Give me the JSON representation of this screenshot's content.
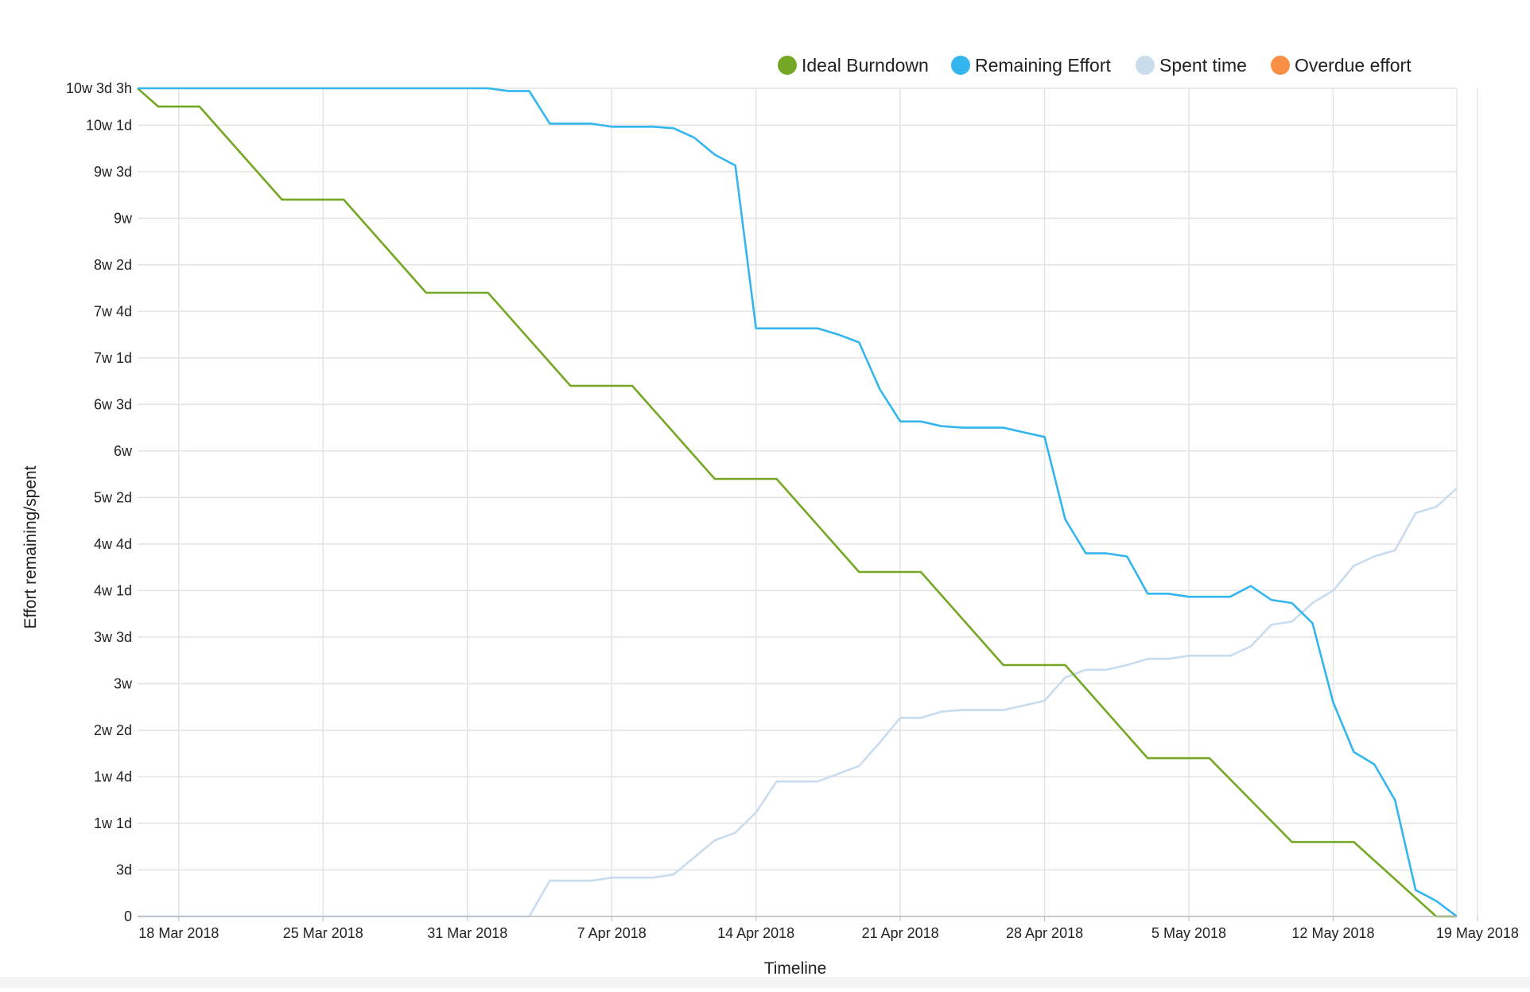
{
  "chart_data": {
    "type": "line",
    "xlabel": "Timeline",
    "ylabel": "Effort remaining/spent",
    "x_tick_labels": [
      "18 Mar 2018",
      "25 Mar 2018",
      "31 Mar 2018",
      "7 Apr 2018",
      "14 Apr 2018",
      "21 Apr 2018",
      "28 Apr 2018",
      "5 May 2018",
      "12 May 2018",
      "19 May 2018"
    ],
    "y_tick_labels": [
      "0",
      "3d",
      "1w 1d",
      "1w 4d",
      "2w 2d",
      "3w",
      "3w 3d",
      "4w 1d",
      "4w 4d",
      "5w 2d",
      "6w",
      "6w 3d",
      "7w 1d",
      "7w 4d",
      "8w 2d",
      "9w",
      "9w 3d",
      "10w 1d",
      "10w 3d 3h"
    ],
    "y_unit": "days",
    "ylim": [
      0,
      53.375
    ],
    "grid": true,
    "legend_position": "top-right",
    "series": [
      {
        "name": "Ideal Burndown",
        "color": "#73a724",
        "x": [
          "2018-03-16",
          "2018-03-17",
          "2018-03-18",
          "2018-03-19",
          "2018-03-23",
          "2018-03-24",
          "2018-03-25",
          "2018-03-26",
          "2018-03-30",
          "2018-03-31",
          "2018-04-01",
          "2018-04-02",
          "2018-04-06",
          "2018-04-07",
          "2018-04-08",
          "2018-04-09",
          "2018-04-13",
          "2018-04-14",
          "2018-04-15",
          "2018-04-16",
          "2018-04-20",
          "2018-04-21",
          "2018-04-22",
          "2018-04-23",
          "2018-04-27",
          "2018-04-28",
          "2018-04-29",
          "2018-04-30",
          "2018-05-04",
          "2018-05-05",
          "2018-05-06",
          "2018-05-07",
          "2018-05-11",
          "2018-05-12",
          "2018-05-13",
          "2018-05-14",
          "2018-05-18",
          "2018-05-19"
        ],
        "y": [
          53.375,
          52.2,
          52.2,
          52.2,
          46.2,
          46.2,
          46.2,
          46.2,
          40.2,
          40.2,
          40.2,
          40.2,
          34.2,
          34.2,
          34.2,
          34.2,
          28.2,
          28.2,
          28.2,
          28.2,
          22.2,
          22.2,
          22.2,
          22.2,
          16.2,
          16.2,
          16.2,
          16.2,
          10.2,
          10.2,
          10.2,
          10.2,
          4.8,
          4.8,
          4.8,
          4.8,
          0,
          0
        ]
      },
      {
        "name": "Remaining Effort",
        "color": "#33b5ee",
        "x": [
          "2018-03-16",
          "2018-04-02",
          "2018-04-03",
          "2018-04-04",
          "2018-04-05",
          "2018-04-06",
          "2018-04-07",
          "2018-04-08",
          "2018-04-09",
          "2018-04-10",
          "2018-04-11",
          "2018-04-12",
          "2018-04-13",
          "2018-04-14",
          "2018-04-15",
          "2018-04-16",
          "2018-04-17",
          "2018-04-18",
          "2018-04-19",
          "2018-04-20",
          "2018-04-21",
          "2018-04-22",
          "2018-04-23",
          "2018-04-24",
          "2018-04-25",
          "2018-04-26",
          "2018-04-27",
          "2018-04-28",
          "2018-04-29",
          "2018-04-30",
          "2018-05-01",
          "2018-05-02",
          "2018-05-03",
          "2018-05-04",
          "2018-05-05",
          "2018-05-06",
          "2018-05-07",
          "2018-05-08",
          "2018-05-09",
          "2018-05-10",
          "2018-05-11",
          "2018-05-12",
          "2018-05-13",
          "2018-05-14",
          "2018-05-15",
          "2018-05-16",
          "2018-05-17",
          "2018-05-18",
          "2018-05-19"
        ],
        "y": [
          53.375,
          53.375,
          53.2,
          53.2,
          51.1,
          51.1,
          51.1,
          50.9,
          50.9,
          50.9,
          50.8,
          50.2,
          49.1,
          48.4,
          37.9,
          37.9,
          37.9,
          37.9,
          37.5,
          37.0,
          34.0,
          31.9,
          31.9,
          31.6,
          31.5,
          31.5,
          31.5,
          31.2,
          30.9,
          25.6,
          23.4,
          23.4,
          23.2,
          20.8,
          20.8,
          20.6,
          20.6,
          20.6,
          21.3,
          20.4,
          20.2,
          18.9,
          13.8,
          10.6,
          9.8,
          7.5,
          1.7,
          1.0,
          0
        ]
      },
      {
        "name": "Spent time",
        "color": "#c9dcee",
        "x": [
          "2018-03-16",
          "2018-04-04",
          "2018-04-05",
          "2018-04-07",
          "2018-04-08",
          "2018-04-10",
          "2018-04-11",
          "2018-04-12",
          "2018-04-13",
          "2018-04-14",
          "2018-04-15",
          "2018-04-16",
          "2018-04-18",
          "2018-04-19",
          "2018-04-20",
          "2018-04-21",
          "2018-04-22",
          "2018-04-23",
          "2018-04-24",
          "2018-04-25",
          "2018-04-27",
          "2018-04-28",
          "2018-04-29",
          "2018-04-30",
          "2018-05-01",
          "2018-05-02",
          "2018-05-03",
          "2018-05-04",
          "2018-05-05",
          "2018-05-06",
          "2018-05-08",
          "2018-05-09",
          "2018-05-10",
          "2018-05-11",
          "2018-05-12",
          "2018-05-13",
          "2018-05-14",
          "2018-05-15",
          "2018-05-16",
          "2018-05-17",
          "2018-05-18",
          "2018-05-19"
        ],
        "y": [
          0,
          0,
          2.3,
          2.3,
          2.5,
          2.5,
          2.7,
          3.8,
          4.9,
          5.4,
          6.7,
          8.7,
          8.7,
          9.2,
          9.7,
          11.2,
          12.8,
          12.8,
          13.2,
          13.3,
          13.3,
          13.6,
          13.9,
          15.4,
          15.9,
          15.9,
          16.2,
          16.6,
          16.6,
          16.8,
          16.8,
          17.4,
          18.8,
          19.0,
          20.2,
          21.0,
          22.6,
          23.2,
          23.6,
          26.0,
          26.4,
          27.6
        ]
      },
      {
        "name": "Overdue effort",
        "color": "#f98f45",
        "x": [],
        "y": []
      }
    ]
  }
}
